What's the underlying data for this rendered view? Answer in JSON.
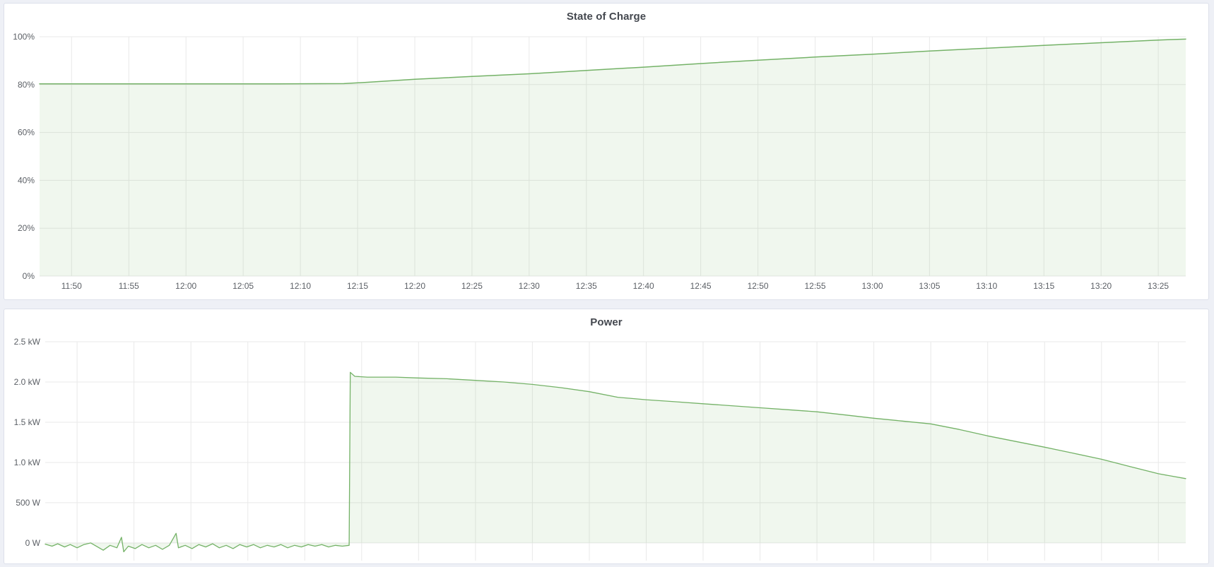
{
  "panels": [
    {
      "title": "State of Charge"
    },
    {
      "title": "Power"
    }
  ],
  "colors": {
    "page_background": "#eef0f6",
    "panel_background": "#ffffff",
    "panel_border": "#dde0ea",
    "grid": "#e9e9e9",
    "series_green_line": "#74b267",
    "series_green_fill": "rgba(116,178,103,0.11)",
    "tick_text": "#5c6066",
    "title_text": "#44484f"
  },
  "chart_data": [
    {
      "type": "area",
      "title": "State of Charge",
      "unit": "%",
      "xlim_minutes": [
        707.2,
        807.4
      ],
      "ylim": [
        0,
        100
      ],
      "grid": true,
      "legend": "none",
      "x_ticks": [
        {
          "m": 710,
          "label": "11:50"
        },
        {
          "m": 715,
          "label": "11:55"
        },
        {
          "m": 720,
          "label": "12:00"
        },
        {
          "m": 725,
          "label": "12:05"
        },
        {
          "m": 730,
          "label": "12:10"
        },
        {
          "m": 735,
          "label": "12:15"
        },
        {
          "m": 740,
          "label": "12:20"
        },
        {
          "m": 745,
          "label": "12:25"
        },
        {
          "m": 750,
          "label": "12:30"
        },
        {
          "m": 755,
          "label": "12:35"
        },
        {
          "m": 760,
          "label": "12:40"
        },
        {
          "m": 765,
          "label": "12:45"
        },
        {
          "m": 770,
          "label": "12:50"
        },
        {
          "m": 775,
          "label": "12:55"
        },
        {
          "m": 780,
          "label": "13:00"
        },
        {
          "m": 785,
          "label": "13:05"
        },
        {
          "m": 790,
          "label": "13:10"
        },
        {
          "m": 795,
          "label": "13:15"
        },
        {
          "m": 800,
          "label": "13:20"
        },
        {
          "m": 805,
          "label": "13:25"
        }
      ],
      "y_ticks": [
        {
          "v": 100,
          "label": "100%"
        },
        {
          "v": 80,
          "label": "80%"
        },
        {
          "v": 60,
          "label": "60%"
        },
        {
          "v": 40,
          "label": "40%"
        },
        {
          "v": 20,
          "label": "20%"
        },
        {
          "v": 0,
          "label": "0%"
        }
      ],
      "fill_to": 0,
      "points": [
        [
          707.2,
          80.3
        ],
        [
          715,
          80.3
        ],
        [
          722,
          80.3
        ],
        [
          728,
          80.3
        ],
        [
          733.8,
          80.4
        ],
        [
          736,
          81.0
        ],
        [
          740,
          82.2
        ],
        [
          745,
          83.4
        ],
        [
          750,
          84.5
        ],
        [
          755,
          85.9
        ],
        [
          760,
          87.3
        ],
        [
          765,
          88.8
        ],
        [
          770,
          90.2
        ],
        [
          775,
          91.5
        ],
        [
          780,
          92.7
        ],
        [
          785,
          94.0
        ],
        [
          790,
          95.2
        ],
        [
          795,
          96.4
        ],
        [
          800,
          97.5
        ],
        [
          805,
          98.6
        ],
        [
          807.4,
          99.0
        ]
      ]
    },
    {
      "type": "area",
      "title": "Power",
      "unit": "kW",
      "xlim_minutes": [
        707.2,
        807.4
      ],
      "ylim": [
        -0.22,
        2.5
      ],
      "grid": true,
      "legend": "none",
      "x_ticks": [
        {
          "m": 710,
          "label": "11:50"
        },
        {
          "m": 715,
          "label": "11:55"
        },
        {
          "m": 720,
          "label": "12:00"
        },
        {
          "m": 725,
          "label": "12:05"
        },
        {
          "m": 730,
          "label": "12:10"
        },
        {
          "m": 735,
          "label": "12:15"
        },
        {
          "m": 740,
          "label": "12:20"
        },
        {
          "m": 745,
          "label": "12:25"
        },
        {
          "m": 750,
          "label": "12:30"
        },
        {
          "m": 755,
          "label": "12:35"
        },
        {
          "m": 760,
          "label": "12:40"
        },
        {
          "m": 765,
          "label": "12:45"
        },
        {
          "m": 770,
          "label": "12:50"
        },
        {
          "m": 775,
          "label": "12:55"
        },
        {
          "m": 780,
          "label": "13:00"
        },
        {
          "m": 785,
          "label": "13:05"
        },
        {
          "m": 790,
          "label": "13:10"
        },
        {
          "m": 795,
          "label": "13:15"
        },
        {
          "m": 800,
          "label": "13:20"
        },
        {
          "m": 805,
          "label": "13:25"
        }
      ],
      "y_ticks": [
        {
          "v": 2.5,
          "label": "2.5 kW"
        },
        {
          "v": 2.0,
          "label": "2.0 kW"
        },
        {
          "v": 1.5,
          "label": "1.5 kW"
        },
        {
          "v": 1.0,
          "label": "1.0 kW"
        },
        {
          "v": 0.5,
          "label": "500 W"
        },
        {
          "v": 0,
          "label": "0 W"
        }
      ],
      "fill_to": 0,
      "points": [
        [
          707.2,
          -0.015
        ],
        [
          707.8,
          -0.04
        ],
        [
          708.3,
          -0.01
        ],
        [
          708.9,
          -0.05
        ],
        [
          709.4,
          -0.02
        ],
        [
          710.0,
          -0.06
        ],
        [
          710.6,
          -0.02
        ],
        [
          711.2,
          0.0
        ],
        [
          711.8,
          -0.05
        ],
        [
          712.3,
          -0.09
        ],
        [
          712.9,
          -0.03
        ],
        [
          713.5,
          -0.06
        ],
        [
          713.9,
          0.07
        ],
        [
          714.1,
          -0.11
        ],
        [
          714.5,
          -0.04
        ],
        [
          715.1,
          -0.07
        ],
        [
          715.7,
          -0.02
        ],
        [
          716.3,
          -0.06
        ],
        [
          716.9,
          -0.03
        ],
        [
          717.5,
          -0.08
        ],
        [
          718.1,
          -0.03
        ],
        [
          718.7,
          0.12
        ],
        [
          718.9,
          -0.06
        ],
        [
          719.5,
          -0.03
        ],
        [
          720.1,
          -0.07
        ],
        [
          720.7,
          -0.02
        ],
        [
          721.3,
          -0.05
        ],
        [
          721.9,
          -0.01
        ],
        [
          722.5,
          -0.06
        ],
        [
          723.1,
          -0.03
        ],
        [
          723.7,
          -0.07
        ],
        [
          724.3,
          -0.02
        ],
        [
          724.9,
          -0.05
        ],
        [
          725.5,
          -0.02
        ],
        [
          726.1,
          -0.06
        ],
        [
          726.7,
          -0.03
        ],
        [
          727.3,
          -0.05
        ],
        [
          727.9,
          -0.02
        ],
        [
          728.5,
          -0.06
        ],
        [
          729.1,
          -0.03
        ],
        [
          729.7,
          -0.05
        ],
        [
          730.3,
          -0.02
        ],
        [
          730.9,
          -0.04
        ],
        [
          731.5,
          -0.02
        ],
        [
          732.1,
          -0.05
        ],
        [
          732.7,
          -0.03
        ],
        [
          733.3,
          -0.04
        ],
        [
          733.9,
          -0.03
        ],
        [
          734.0,
          2.12
        ],
        [
          734.4,
          2.07
        ],
        [
          735.5,
          2.06
        ],
        [
          738,
          2.06
        ],
        [
          740,
          2.05
        ],
        [
          742.5,
          2.04
        ],
        [
          745,
          2.02
        ],
        [
          747.5,
          2.0
        ],
        [
          750,
          1.97
        ],
        [
          752.5,
          1.93
        ],
        [
          755,
          1.88
        ],
        [
          757.5,
          1.81
        ],
        [
          760,
          1.78
        ],
        [
          762.5,
          1.755
        ],
        [
          765,
          1.73
        ],
        [
          767.5,
          1.705
        ],
        [
          770,
          1.68
        ],
        [
          772.5,
          1.655
        ],
        [
          775,
          1.63
        ],
        [
          777.5,
          1.59
        ],
        [
          780,
          1.55
        ],
        [
          782.5,
          1.515
        ],
        [
          785,
          1.48
        ],
        [
          787.5,
          1.41
        ],
        [
          790,
          1.33
        ],
        [
          792.5,
          1.26
        ],
        [
          795,
          1.19
        ],
        [
          797.5,
          1.115
        ],
        [
          800,
          1.04
        ],
        [
          802.5,
          0.95
        ],
        [
          805,
          0.86
        ],
        [
          807.4,
          0.8
        ]
      ]
    }
  ]
}
